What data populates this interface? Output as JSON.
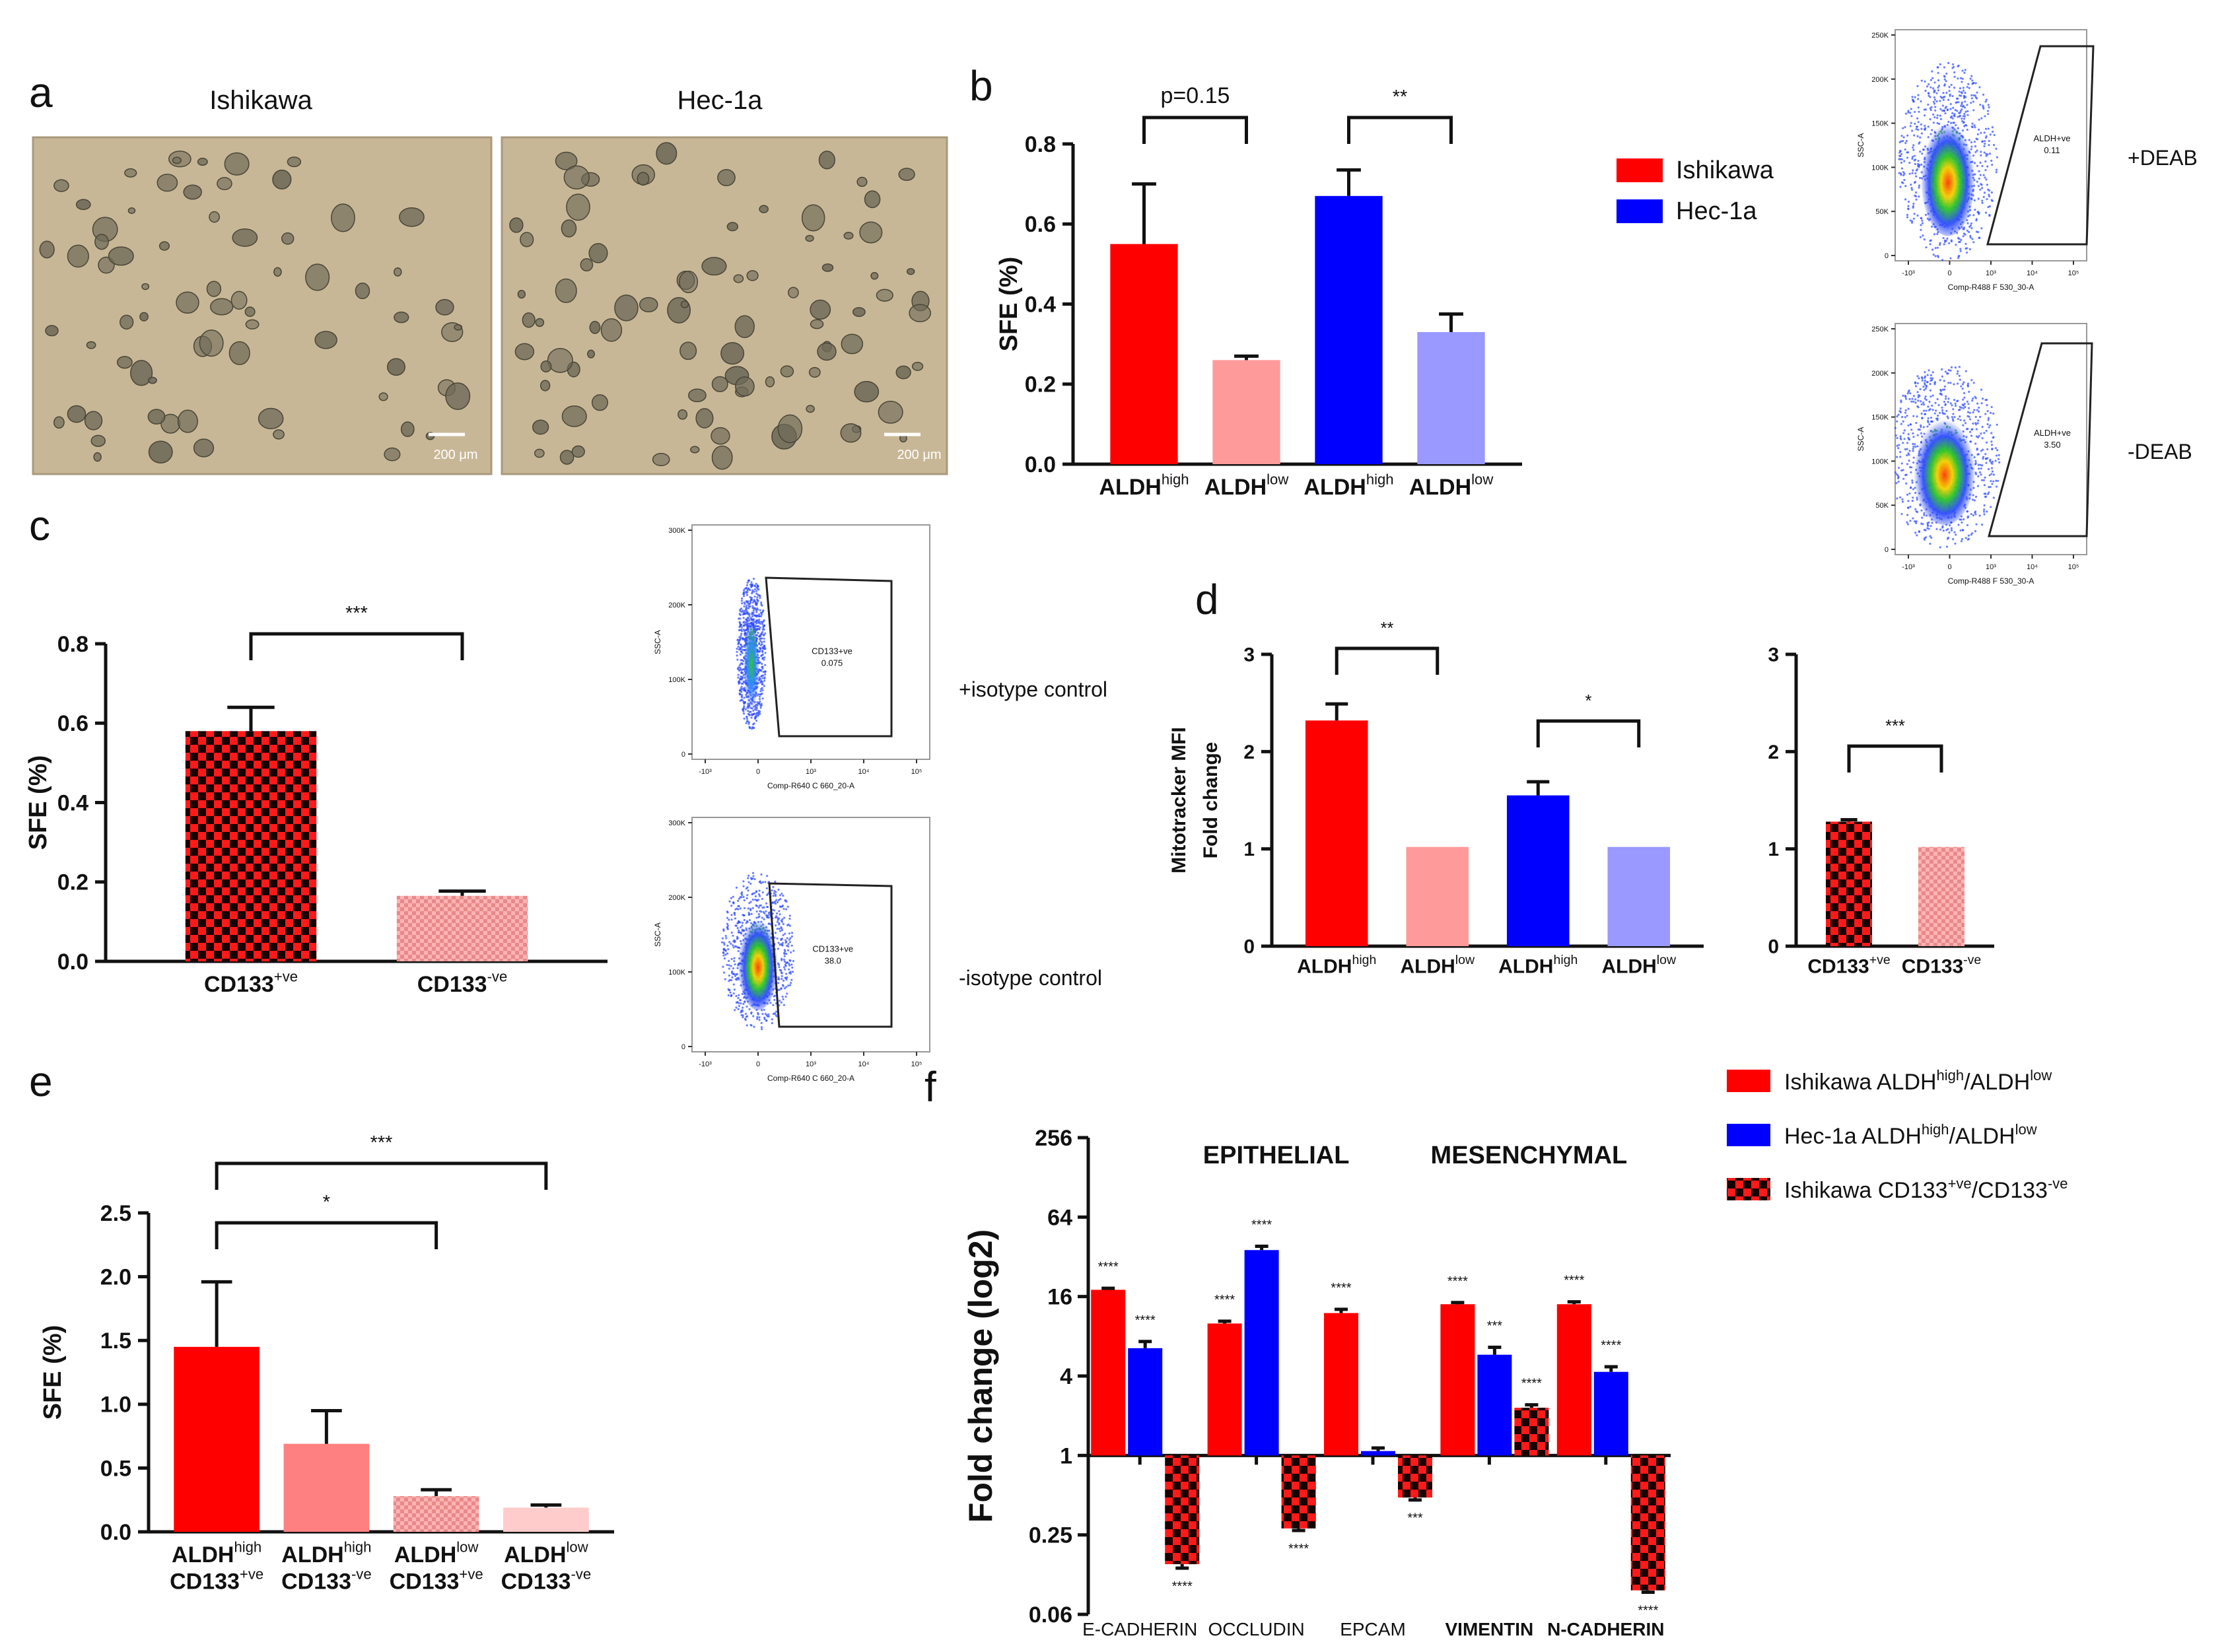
{
  "colors": {
    "red": "#ff0000",
    "pink": "#ff9a9a",
    "blue": "#0000ff",
    "lavender": "#9999ff",
    "micro_bg": "#c8b796",
    "sphere": "#6f6a58"
  },
  "panel_letters": {
    "a": "a",
    "b": "b",
    "c": "c",
    "d": "d",
    "e": "e",
    "f": "f"
  },
  "panel_a": {
    "images": [
      {
        "title": "Ishikawa",
        "scale_bar": "200 μm"
      },
      {
        "title": "Hec-1a",
        "scale_bar": "200 μm"
      }
    ]
  },
  "flow_plots": [
    {
      "ylabel": "SSC-A",
      "xlabel": "Comp-R488 F 530_30-A",
      "gate_label": "ALDH+ve",
      "gate_value": "0.11",
      "condition": "+DEAB",
      "yticks": [
        "250K",
        "200K",
        "150K",
        "100K",
        "50K",
        "0"
      ],
      "xticks": [
        "-10³",
        "0",
        "10³",
        "10⁴",
        "10⁵"
      ],
      "density": 0.45,
      "spread": 0.55
    },
    {
      "ylabel": "SSC-A",
      "xlabel": "Comp-R488 F 530_30-A",
      "gate_label": "ALDH+ve",
      "gate_value": "3.50",
      "condition": "-DEAB",
      "yticks": [
        "250K",
        "200K",
        "150K",
        "100K",
        "50K",
        "0"
      ],
      "xticks": [
        "-10³",
        "0",
        "10³",
        "10⁴",
        "10⁵"
      ],
      "density": 0.4,
      "spread": 0.65
    },
    {
      "ylabel": "SSC-A",
      "xlabel": "Comp-R640 C 660_20-A",
      "gate_label": "CD133+ve",
      "gate_value": "0.075",
      "condition": "+isotype control",
      "yticks": [
        "300K",
        "200K",
        "100K",
        "0"
      ],
      "xticks": [
        "-10³",
        "0",
        "10³",
        "10⁴",
        "10⁵"
      ],
      "density": 0.25,
      "spread": 0.15
    },
    {
      "ylabel": "SSC-A",
      "xlabel": "Comp-R640 C 660_20-A",
      "gate_label": "CD133+ve",
      "gate_value": "38.0",
      "condition": "-isotype control",
      "yticks": [
        "300K",
        "200K",
        "100K",
        "0"
      ],
      "xticks": [
        "-10³",
        "0",
        "10³",
        "10⁴",
        "10⁵"
      ],
      "density": 0.3,
      "spread": 0.45
    }
  ],
  "chart_data": [
    {
      "id": "b",
      "type": "bar",
      "ylabel": "SFE (%)",
      "ylim": [
        0,
        0.8
      ],
      "yticks": [
        "0.0",
        "0.2",
        "0.4",
        "0.6",
        "0.8"
      ],
      "bars": [
        {
          "label_main": "ALDH",
          "label_sup": "high",
          "value": 0.55,
          "err": 0.15,
          "fill": "red"
        },
        {
          "label_main": "ALDH",
          "label_sup": "low",
          "value": 0.26,
          "err": 0.01,
          "fill": "pink"
        },
        {
          "label_main": "ALDH",
          "label_sup": "high",
          "value": 0.67,
          "err": 0.065,
          "fill": "blue"
        },
        {
          "label_main": "ALDH",
          "label_sup": "low",
          "value": 0.33,
          "err": 0.045,
          "fill": "lavender"
        }
      ],
      "significance": [
        {
          "from": 0,
          "to": 1,
          "label": "p=0.15"
        },
        {
          "from": 2,
          "to": 3,
          "label": "**"
        }
      ],
      "legend": [
        {
          "label": "Ishikawa",
          "fill": "red"
        },
        {
          "label": "Hec-1a",
          "fill": "blue"
        }
      ]
    },
    {
      "id": "c",
      "type": "bar",
      "ylabel": "SFE (%)",
      "ylim": [
        0,
        0.8
      ],
      "yticks": [
        "0.0",
        "0.2",
        "0.4",
        "0.6",
        "0.8"
      ],
      "bars": [
        {
          "label_main": "CD133",
          "label_sup": "+ve",
          "value": 0.58,
          "err": 0.06,
          "fill": "checker_red"
        },
        {
          "label_main": "CD133",
          "label_sup": "-ve",
          "value": 0.165,
          "err": 0.012,
          "fill": "checker_pink"
        }
      ],
      "significance": [
        {
          "from": 0,
          "to": 1,
          "label": "***"
        }
      ]
    },
    {
      "id": "d1",
      "type": "bar",
      "ylabel": "Mitotracker MFI",
      "ylabel2": "Fold change",
      "ylim": [
        0,
        3
      ],
      "yticks": [
        "0",
        "1",
        "2",
        "3"
      ],
      "bars": [
        {
          "label_main": "ALDH",
          "label_sup": "high",
          "value": 2.32,
          "err": 0.17,
          "fill": "red"
        },
        {
          "label_main": "ALDH",
          "label_sup": "low",
          "value": 1.02,
          "err": 0,
          "fill": "pink"
        },
        {
          "label_main": "ALDH",
          "label_sup": "high",
          "value": 1.55,
          "err": 0.14,
          "fill": "blue"
        },
        {
          "label_main": "ALDH",
          "label_sup": "low",
          "value": 1.02,
          "err": 0,
          "fill": "lavender"
        }
      ],
      "significance": [
        {
          "from": 0,
          "to": 1,
          "label": "**"
        },
        {
          "from": 2,
          "to": 3,
          "label": "*"
        }
      ]
    },
    {
      "id": "d2",
      "type": "bar",
      "ylim": [
        0,
        3
      ],
      "yticks": [
        "0",
        "1",
        "2",
        "3"
      ],
      "bars": [
        {
          "label_main": "CD133",
          "label_sup": "+ve",
          "value": 1.28,
          "err": 0.02,
          "fill": "checker_red"
        },
        {
          "label_main": "CD133",
          "label_sup": "-ve",
          "value": 1.02,
          "err": 0,
          "fill": "checker_pink"
        }
      ],
      "significance": [
        {
          "from": 0,
          "to": 1,
          "label": "***"
        }
      ]
    },
    {
      "id": "e",
      "type": "bar",
      "ylabel": "SFE (%)",
      "ylim": [
        0,
        2.5
      ],
      "yticks": [
        "0.0",
        "0.5",
        "1.0",
        "1.5",
        "2.0",
        "2.5"
      ],
      "bars": [
        {
          "line1_main": "ALDH",
          "line1_sup": "high",
          "line2_main": "CD133",
          "line2_sup": "+ve",
          "value": 1.45,
          "err": 0.51,
          "fill": "red"
        },
        {
          "line1_main": "ALDH",
          "line1_sup": "high",
          "line2_main": "CD133",
          "line2_sup": "-ve",
          "value": 0.69,
          "err": 0.26,
          "fill": "salmon"
        },
        {
          "line1_main": "ALDH",
          "line1_sup": "low",
          "line2_main": "CD133",
          "line2_sup": "+ve",
          "value": 0.28,
          "err": 0.05,
          "fill": "checker_pink"
        },
        {
          "line1_main": "ALDH",
          "line1_sup": "low",
          "line2_main": "CD133",
          "line2_sup": "-ve",
          "value": 0.19,
          "err": 0.02,
          "fill": "light_pink"
        }
      ],
      "significance": [
        {
          "from": 0,
          "to": 2,
          "label": "*"
        },
        {
          "from": 0,
          "to": 3,
          "label": "***"
        }
      ]
    },
    {
      "id": "f",
      "type": "bar",
      "scale": "log2",
      "ylabel": "Fold change (log2)",
      "ylim": [
        0.0625,
        256
      ],
      "yticks": [
        "256",
        "64",
        "16",
        "4",
        "1",
        "0.25",
        "0.06"
      ],
      "ytick_values": [
        256,
        64,
        16,
        4,
        1,
        0.25,
        0.0625
      ],
      "baseline": 1,
      "section_labels": [
        {
          "text": "EPITHELIAL",
          "over_group": 1
        },
        {
          "text": "MESENCHYMAL",
          "over_group": 3
        }
      ],
      "categories": [
        "E-CADHERIN",
        "OCCLUDIN",
        "EPCAM",
        "VIMENTIN",
        "N-CADHERIN"
      ],
      "series": [
        {
          "name_main": "Ishikawa ALDH",
          "name_sup1": "high",
          "name_mid": "/ALDH",
          "name_sup2": "low",
          "fill": "red",
          "values": [
            18,
            10,
            12,
            14,
            14
          ],
          "errs": [
            0.5,
            0.4,
            0.8,
            0.4,
            0.6
          ],
          "stars": [
            "****",
            "****",
            "****",
            "****",
            "****"
          ]
        },
        {
          "name_main": "Hec-1a ALDH",
          "name_sup1": "high",
          "name_mid": "/ALDH",
          "name_sup2": "low",
          "fill": "blue",
          "values": [
            6.5,
            36,
            1.08,
            5.8,
            4.3
          ],
          "errs": [
            0.8,
            2.5,
            0.06,
            0.8,
            0.4
          ],
          "stars": [
            "****",
            "****",
            "",
            "***",
            "****"
          ]
        },
        {
          "name_main": "Ishikawa CD133",
          "name_sup1": "+ve",
          "name_mid": "/CD133",
          "name_sup2": "-ve",
          "fill": "checker_red",
          "values": [
            0.15,
            0.28,
            0.48,
            2.3,
            0.095
          ],
          "errs": [
            0.01,
            0.01,
            0.02,
            0.12,
            0.003
          ],
          "stars": [
            "****",
            "****",
            "***",
            "****",
            "****"
          ]
        }
      ]
    }
  ]
}
